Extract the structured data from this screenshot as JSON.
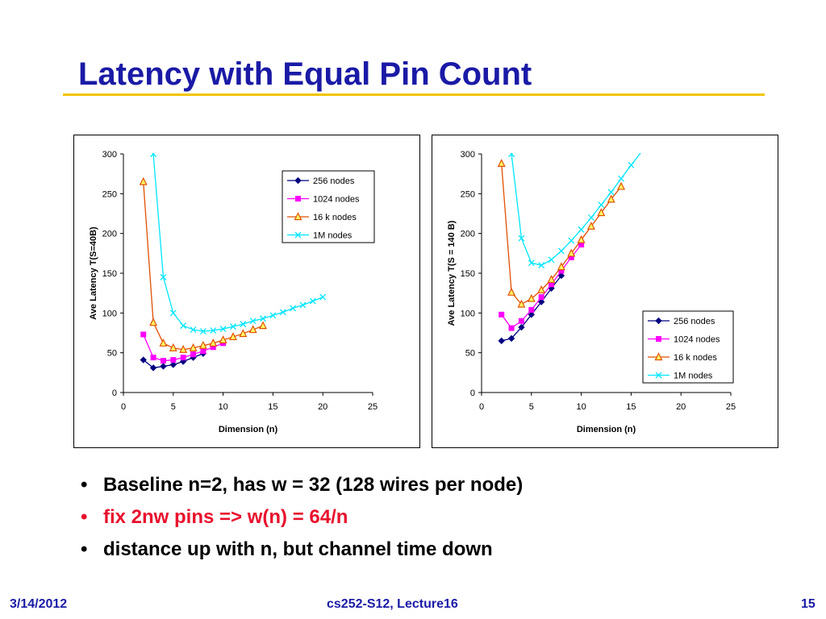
{
  "slide": {
    "title": "Latency with Equal Pin Count",
    "colors": {
      "title": "#1a1aa6",
      "rule": "#f2c500",
      "bullet_red": "#e8112d"
    }
  },
  "bullets": [
    {
      "text": "Baseline n=2, has w = 32   (128 wires per node)",
      "color": "#000000"
    },
    {
      "text": "fix 2nw pins => w(n) = 64/n",
      "color": "#e8112d"
    },
    {
      "text": "distance up with n, but channel time down",
      "color": "#000000"
    }
  ],
  "footer": {
    "date": "3/14/2012",
    "course": "cs252-S12, Lecture16",
    "page": "15"
  },
  "chart_data": [
    {
      "type": "line",
      "xlabel": "Dimension (n)",
      "ylabel": "Ave Latency T(S=40B)",
      "xlim": [
        0,
        25
      ],
      "ylim": [
        0,
        300
      ],
      "xticks": [
        0,
        5,
        10,
        15,
        20,
        25
      ],
      "yticks": [
        0,
        50,
        100,
        150,
        200,
        250,
        300
      ],
      "legend_position": "top-right",
      "series": [
        {
          "name": "256 nodes",
          "color": "#000080",
          "marker": "diamond",
          "x": [
            2,
            3,
            4,
            5,
            6,
            7,
            8
          ],
          "y": [
            41,
            31,
            33,
            35,
            39,
            44,
            49
          ]
        },
        {
          "name": "1024 nodes",
          "color": "#ff00ff",
          "marker": "square",
          "x": [
            2,
            3,
            4,
            5,
            6,
            7,
            8,
            9,
            10
          ],
          "y": [
            73,
            44,
            40,
            41,
            44,
            48,
            52,
            57,
            62
          ]
        },
        {
          "name": "16 k nodes",
          "color": "#e05000",
          "marker": "triangle",
          "x": [
            2,
            3,
            4,
            5,
            6,
            7,
            8,
            9,
            10,
            11,
            12,
            13,
            14
          ],
          "y": [
            265,
            88,
            62,
            56,
            54,
            56,
            59,
            62,
            66,
            70,
            74,
            79,
            84
          ]
        },
        {
          "name": "1M nodes",
          "color": "#00e5ff",
          "marker": "x",
          "x": [
            3,
            4,
            5,
            6,
            7,
            8,
            9,
            10,
            11,
            12,
            13,
            14,
            15,
            16,
            17,
            18,
            19,
            20
          ],
          "y": [
            300,
            145,
            100,
            84,
            79,
            77,
            78,
            80,
            83,
            86,
            90,
            93,
            97,
            101,
            106,
            110,
            115,
            120
          ]
        }
      ]
    },
    {
      "type": "line",
      "xlabel": "Dimension (n)",
      "ylabel": "Ave Latency T(S = 140 B)",
      "xlim": [
        0,
        25
      ],
      "ylim": [
        0,
        300
      ],
      "xticks": [
        0,
        5,
        10,
        15,
        20,
        25
      ],
      "yticks": [
        0,
        50,
        100,
        150,
        200,
        250,
        300
      ],
      "legend_position": "bottom-right",
      "series": [
        {
          "name": "256 nodes",
          "color": "#000080",
          "marker": "diamond",
          "x": [
            2,
            3,
            4,
            5,
            6,
            7,
            8
          ],
          "y": [
            65,
            68,
            82,
            98,
            114,
            131,
            147
          ]
        },
        {
          "name": "1024 nodes",
          "color": "#ff00ff",
          "marker": "square",
          "x": [
            2,
            3,
            4,
            5,
            6,
            7,
            8,
            9,
            10
          ],
          "y": [
            98,
            81,
            90,
            104,
            120,
            136,
            153,
            170,
            186
          ]
        },
        {
          "name": "16 k nodes",
          "color": "#e05000",
          "marker": "triangle",
          "x": [
            2,
            3,
            4,
            5,
            6,
            7,
            8,
            9,
            10,
            11,
            12,
            13,
            14
          ],
          "y": [
            288,
            126,
            111,
            118,
            129,
            142,
            158,
            175,
            192,
            209,
            226,
            243,
            259
          ]
        },
        {
          "name": "1M nodes",
          "color": "#00e5ff",
          "marker": "x",
          "x": [
            3,
            4,
            5,
            6,
            7,
            8,
            9,
            10,
            11,
            12,
            13,
            14,
            15,
            16
          ],
          "y": [
            300,
            194,
            163,
            160,
            167,
            178,
            191,
            205,
            220,
            236,
            252,
            269,
            286,
            302
          ]
        }
      ]
    }
  ]
}
